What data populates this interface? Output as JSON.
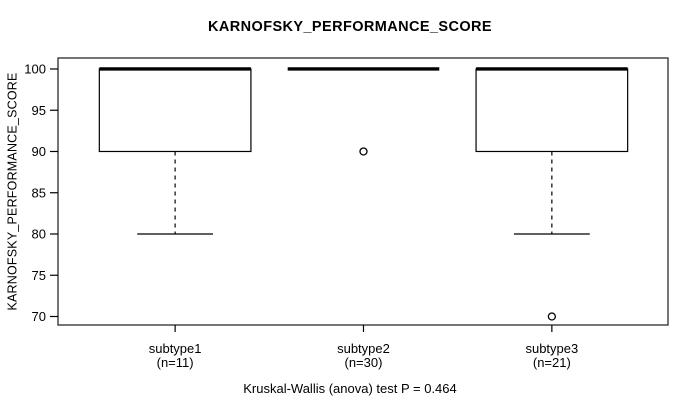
{
  "chart_data": {
    "type": "boxplot",
    "title": "KARNOFSKY_PERFORMANCE_SCORE",
    "ylabel": "KARNOFSKY_PERFORMANCE_SCORE",
    "xlabel": "",
    "ylim": [
      68.97,
      101.33
    ],
    "yticks": [
      70,
      75,
      80,
      85,
      90,
      95,
      100
    ],
    "grid": "off",
    "legend": "none",
    "box_color": "#000000",
    "background_color": "#ffffff",
    "groups": [
      {
        "label": "subtype1",
        "n_label": "(n=11)",
        "n": 11,
        "median": 100,
        "q1": 90,
        "q3": 100,
        "whisker_low": 80,
        "whisker_high": 100,
        "outliers": []
      },
      {
        "label": "subtype2",
        "n_label": "(n=30)",
        "n": 30,
        "median": 100,
        "q1": 100,
        "q3": 100,
        "whisker_low": 100,
        "whisker_high": 100,
        "outliers": [
          90
        ]
      },
      {
        "label": "subtype3",
        "n_label": "(n=21)",
        "n": 21,
        "median": 100,
        "q1": 90,
        "q3": 100,
        "whisker_low": 80,
        "whisker_high": 100,
        "outliers": [
          70
        ]
      }
    ],
    "annotation": "Kruskal-Wallis (anova) test P = 0.464"
  }
}
